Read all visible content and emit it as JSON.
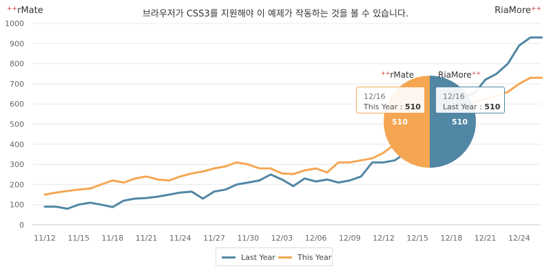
{
  "header": {
    "brand_left": "rMate",
    "brand_right": "RiaMore",
    "notice": "브라우저가 CSS3를 지원해야 이 예제가 작동하는 것을 볼 수 있습니다."
  },
  "colors": {
    "last_year": "#5186a4",
    "this_year": "#f5a652",
    "grid": "#e8e8e8",
    "axis": "#cccccc"
  },
  "chart_data": {
    "type": "line",
    "x": [
      "11/12",
      "11/13",
      "11/14",
      "11/15",
      "11/16",
      "11/17",
      "11/18",
      "11/19",
      "11/20",
      "11/21",
      "11/22",
      "11/23",
      "11/24",
      "11/25",
      "11/26",
      "11/27",
      "11/28",
      "11/29",
      "11/30",
      "12/01",
      "12/02",
      "12/03",
      "12/04",
      "12/05",
      "12/06",
      "12/07",
      "12/08",
      "12/09",
      "12/10",
      "12/11",
      "12/12",
      "12/13",
      "12/14",
      "12/15",
      "12/16",
      "12/17",
      "12/18",
      "12/19",
      "12/20",
      "12/21",
      "12/22",
      "12/23",
      "12/24",
      "12/25",
      "12/26"
    ],
    "tick_labels": [
      "11/12",
      "11/15",
      "11/18",
      "11/21",
      "11/24",
      "11/27",
      "11/30",
      "12/03",
      "12/06",
      "12/09",
      "12/12",
      "12/15",
      "12/18",
      "12/21",
      "12/24"
    ],
    "ylim": [
      0,
      1000
    ],
    "yticks": [
      0,
      100,
      200,
      300,
      400,
      500,
      600,
      700,
      800,
      900,
      1000
    ],
    "grid": true,
    "legend_position": "bottom-center",
    "series": [
      {
        "name": "Last Year",
        "values": [
          90,
          90,
          80,
          100,
          110,
          100,
          88,
          120,
          130,
          133,
          140,
          150,
          160,
          165,
          130,
          165,
          175,
          200,
          210,
          220,
          250,
          225,
          192,
          230,
          215,
          225,
          210,
          220,
          240,
          310,
          310,
          320,
          360,
          480,
          510,
          560,
          600,
          640,
          650,
          720,
          750,
          800,
          890,
          930,
          930
        ]
      },
      {
        "name": "This Year",
        "values": [
          150,
          160,
          168,
          175,
          180,
          200,
          220,
          210,
          230,
          240,
          225,
          220,
          240,
          255,
          265,
          280,
          290,
          310,
          300,
          280,
          280,
          255,
          252,
          270,
          280,
          260,
          310,
          310,
          320,
          330,
          358,
          400,
          440,
          470,
          510,
          540,
          560,
          590,
          610,
          625,
          640,
          660,
          700,
          730,
          730
        ]
      }
    ],
    "pie": {
      "date": "12/16",
      "slices": [
        {
          "name": "This Year",
          "value": 510
        },
        {
          "name": "Last Year",
          "value": 510
        }
      ]
    }
  },
  "tooltips": {
    "left": {
      "date": "12/16",
      "label": "This Year : ",
      "value": "510"
    },
    "right": {
      "date": "12/16",
      "label": "Last Year : ",
      "value": "510"
    }
  },
  "pie_brand": {
    "left": "rMate",
    "right": "RiaMore"
  },
  "legend": {
    "last_year": "Last Year",
    "this_year": "This Year"
  }
}
